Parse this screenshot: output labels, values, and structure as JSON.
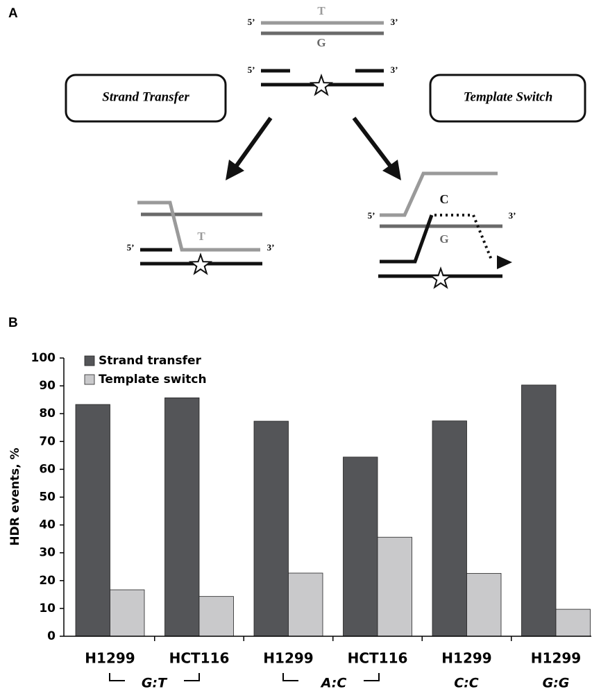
{
  "panels": [
    "A",
    "B"
  ],
  "diagram": {
    "top": {
      "five_1": "5’",
      "three_1": "3’",
      "t": "T",
      "g": "G",
      "five_2": "5’",
      "three_2": "3’"
    },
    "boxes": [
      "Strand Transfer",
      "Template Switch"
    ],
    "strand_transfer": {
      "five": "5’",
      "three": "3’",
      "t": "T"
    },
    "template_switch": {
      "five": "5’",
      "three": "3’",
      "c": "C",
      "g": "G"
    }
  },
  "chart_data": {
    "type": "bar",
    "categories": [
      "H1299",
      "HCT116",
      "H1299",
      "HCT116",
      "H1299",
      "H1299"
    ],
    "group_labels": [
      "G:T",
      "A:C",
      "C:C",
      "G:G"
    ],
    "y_label": "HDR events, %",
    "series": [
      {
        "name": "Strand transfer",
        "color": "#545558",
        "values": [
          83.3,
          85.7,
          77.3,
          64.4,
          77.4,
          90.3
        ]
      },
      {
        "name": "Template switch",
        "color": "#c9c9cb",
        "values": [
          16.7,
          14.3,
          22.7,
          35.6,
          22.6,
          9.7
        ]
      }
    ],
    "ylim": [
      0,
      100
    ],
    "yticks": [
      0,
      10,
      20,
      30,
      40,
      50,
      60,
      70,
      80,
      90,
      100
    ],
    "legend": "upper-left"
  }
}
